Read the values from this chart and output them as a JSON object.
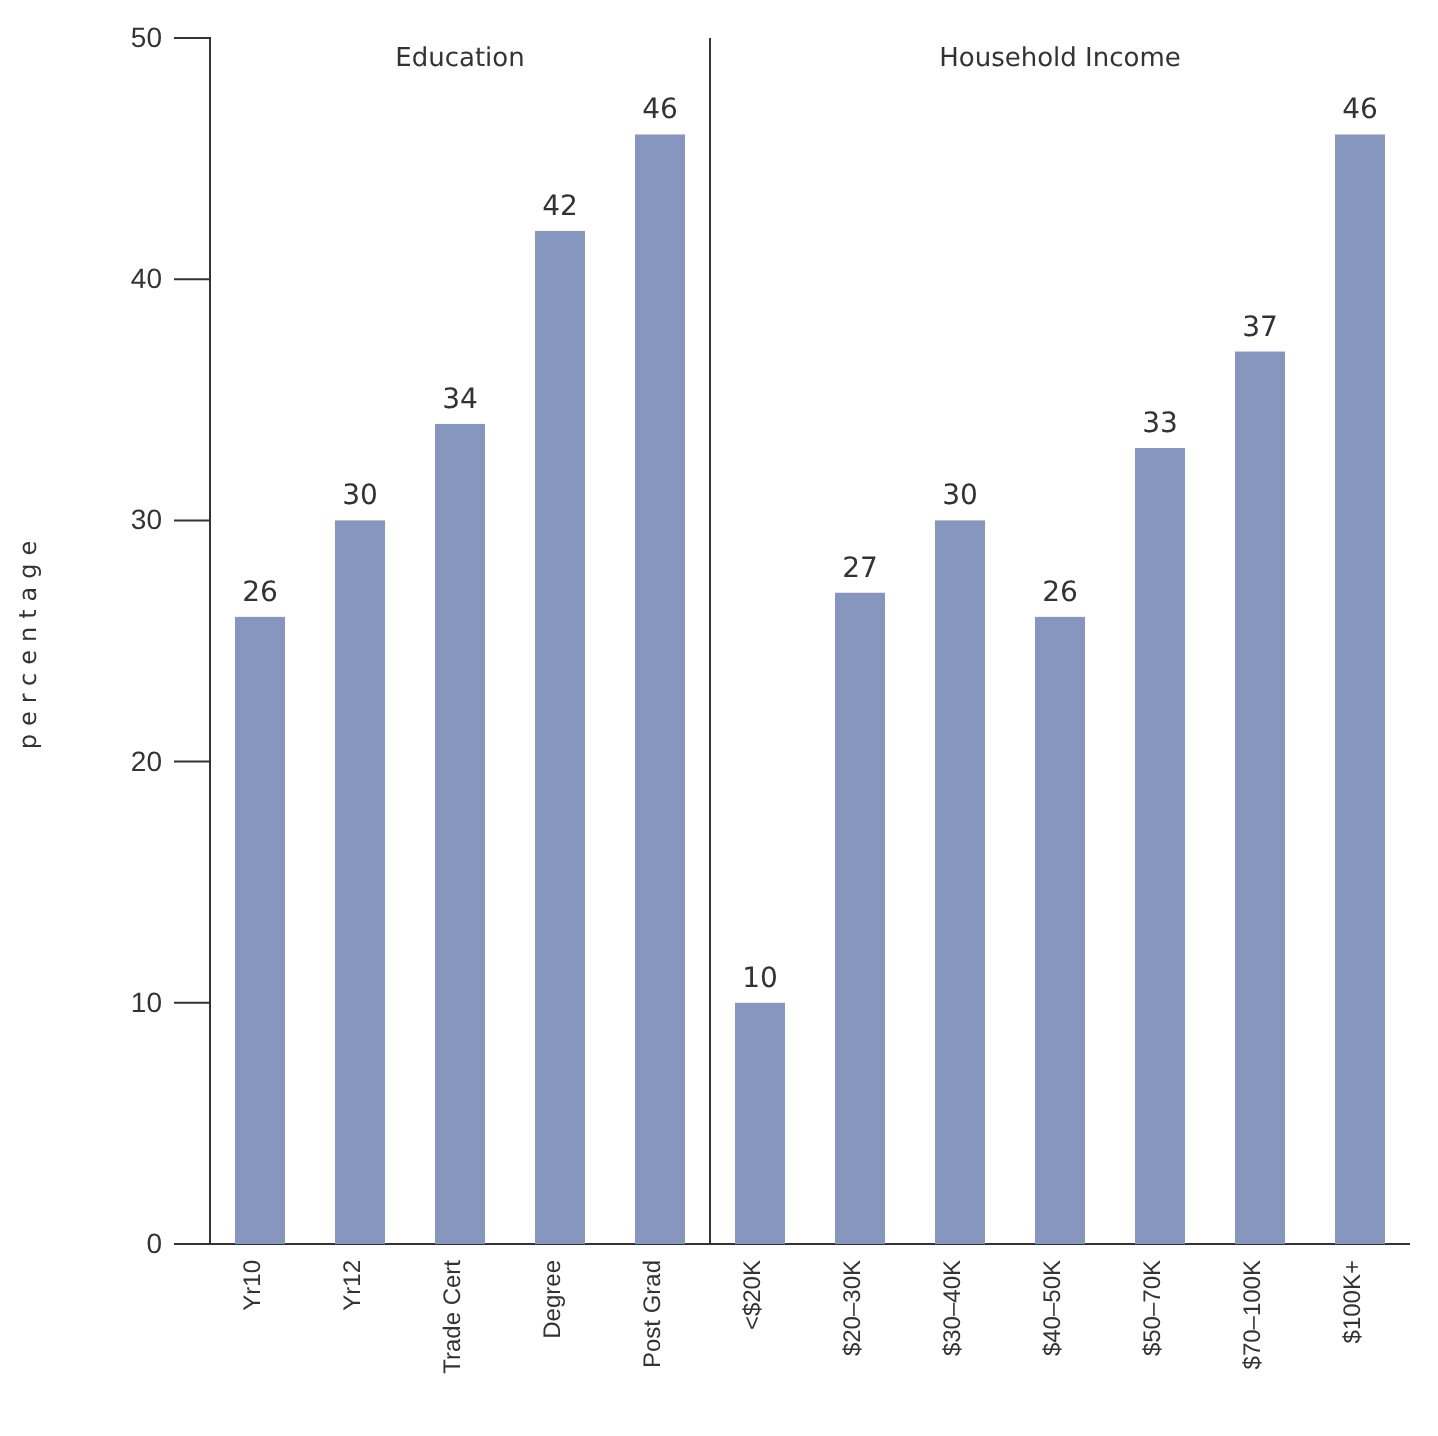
{
  "chart_data": [
    {
      "type": "bar",
      "title": "Education",
      "ylabel": "percentage",
      "categories": [
        "Yr10",
        "Yr12",
        "Trade Cert",
        "Degree",
        "Post Grad"
      ],
      "values": [
        26,
        30,
        34,
        42,
        46
      ],
      "color": "#8796bf",
      "ylim": [
        0,
        50
      ],
      "yticks": [
        0,
        10,
        20,
        30,
        40,
        50
      ],
      "data_labels": true
    },
    {
      "type": "bar",
      "title": "Household Income",
      "categories": [
        "<$20K",
        "$20–30K",
        "$30–40K",
        "$40–50K",
        "$50–70K",
        "$70–100K",
        "$100K+"
      ],
      "values": [
        10,
        27,
        30,
        26,
        33,
        37,
        46
      ],
      "color": "#8796bf",
      "ylim": [
        0,
        50
      ],
      "data_labels": true,
      "tick_labels": "x"
    }
  ]
}
